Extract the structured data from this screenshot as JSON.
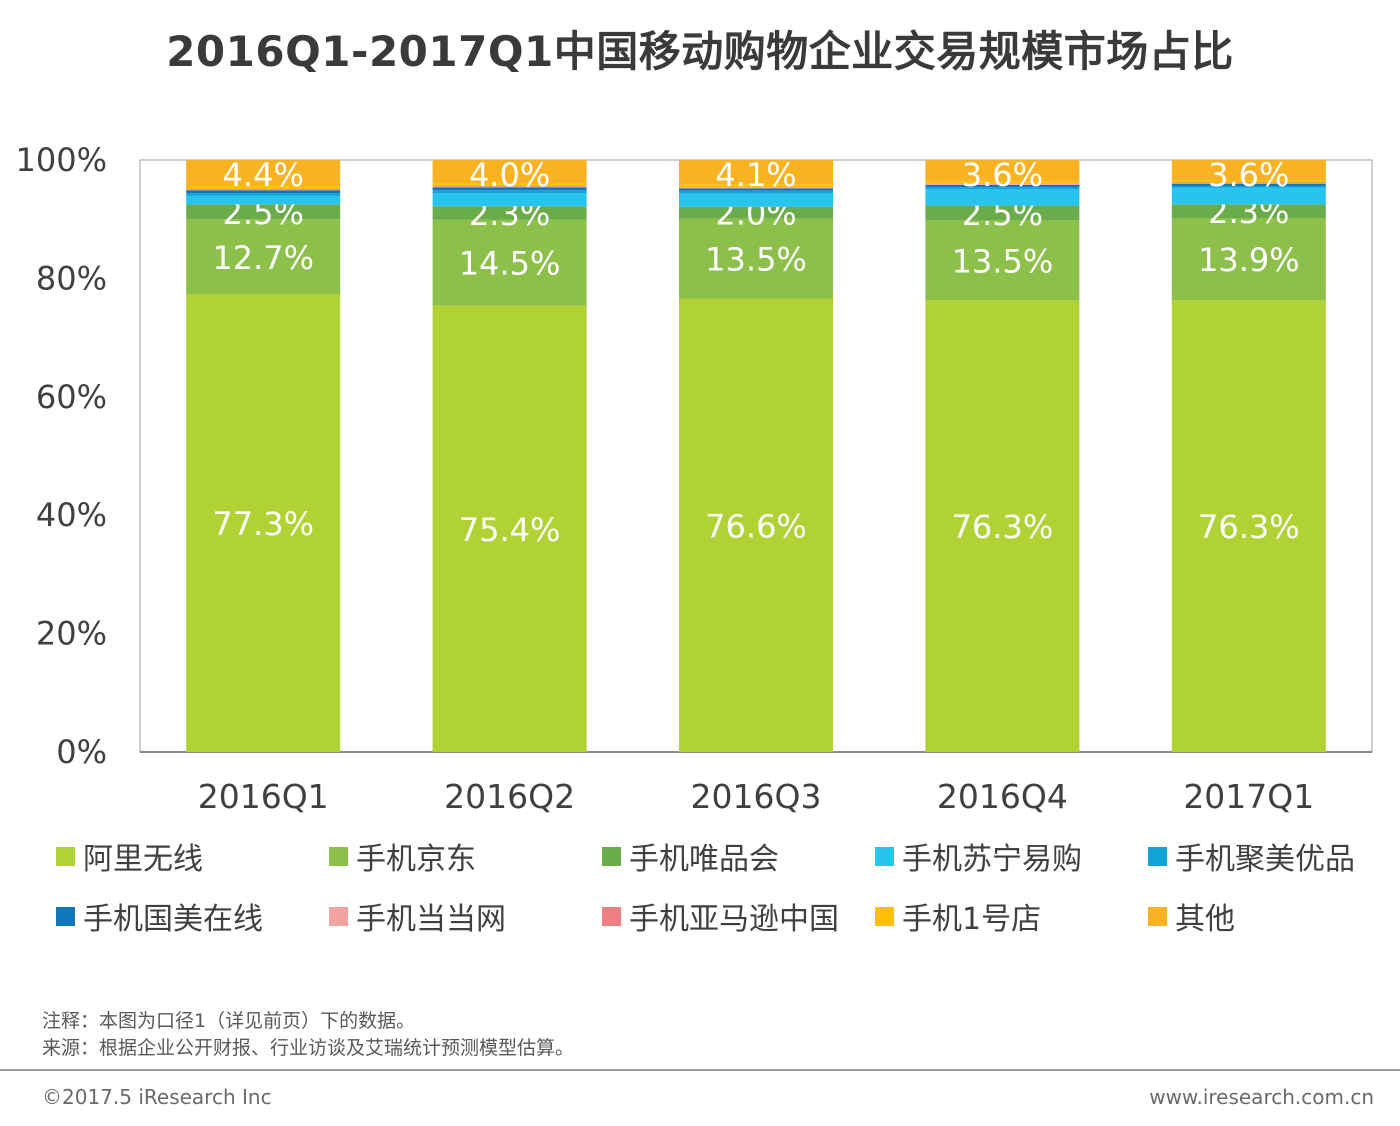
{
  "chart_data": {
    "type": "bar",
    "stacked": true,
    "title": "2016Q1-2017Q1中国移动购物企业交易规模市场占比",
    "categories": [
      "2016Q1",
      "2016Q2",
      "2016Q3",
      "2016Q4",
      "2017Q1"
    ],
    "ylim": [
      0,
      100
    ],
    "yticks": [
      "0%",
      "20%",
      "40%",
      "60%",
      "80%",
      "100%"
    ],
    "series": [
      {
        "name": "阿里无线",
        "color": "#b1d235",
        "values": [
          77.3,
          75.4,
          76.6,
          76.3,
          76.3
        ],
        "labels": [
          "77.3%",
          "75.4%",
          "76.6%",
          "76.3%",
          "76.3%"
        ]
      },
      {
        "name": "手机京东",
        "color": "#8cc04b",
        "values": [
          12.7,
          14.5,
          13.5,
          13.5,
          13.9
        ],
        "labels": [
          "12.7%",
          "14.5%",
          "13.5%",
          "13.5%",
          "13.9%"
        ]
      },
      {
        "name": "手机唯品会",
        "color": "#6aab4a",
        "values": [
          2.5,
          2.3,
          2.0,
          2.5,
          2.3
        ],
        "labels": [
          "2.5%",
          "2.3%",
          "2.0%",
          "2.5%",
          "2.3%"
        ]
      },
      {
        "name": "手机苏宁易购",
        "color": "#27c4ee",
        "values": [
          1.5,
          2.2,
          2.2,
          2.8,
          2.8
        ],
        "labels": [
          "",
          "",
          "",
          "",
          ""
        ]
      },
      {
        "name": "手机聚美优品",
        "color": "#0fa3d8",
        "values": [
          0.4,
          0.5,
          0.5,
          0.3,
          0.3
        ],
        "labels": [
          "",
          "",
          "",
          "",
          ""
        ]
      },
      {
        "name": "手机国美在线",
        "color": "#1177bb",
        "values": [
          0.5,
          0.5,
          0.4,
          0.4,
          0.4
        ],
        "labels": [
          "",
          "",
          "",
          "",
          ""
        ]
      },
      {
        "name": "手机当当网",
        "color": "#f2a3a1",
        "values": [
          0.1,
          0.1,
          0.1,
          0.1,
          0.1
        ],
        "labels": [
          "",
          "",
          "",
          "",
          ""
        ]
      },
      {
        "name": "手机亚马逊中国",
        "color": "#ef7f82",
        "values": [
          0.1,
          0.1,
          0.1,
          0.1,
          0.1
        ],
        "labels": [
          "",
          "",
          "",
          "",
          ""
        ]
      },
      {
        "name": "手机1号店",
        "color": "#ffc000",
        "values": [
          0.5,
          0.4,
          0.5,
          0.4,
          0.4
        ],
        "labels": [
          "",
          "",
          "",
          "",
          ""
        ]
      },
      {
        "name": "其他",
        "color": "#f8b222",
        "values": [
          4.4,
          4.0,
          4.1,
          3.6,
          3.6
        ],
        "labels": [
          "4.4%",
          "4.0%",
          "4.1%",
          "3.6%",
          "3.6%"
        ]
      }
    ],
    "legend_position": "bottom",
    "grid": false
  },
  "notes": {
    "note": "注释：本图为口径1（详见前页）下的数据。",
    "source": "来源：根据企业公开财报、行业访谈及艾瑞统计预测模型估算。"
  },
  "footer": {
    "copyright": "©2017.5 iResearch Inc",
    "website": "www.iresearch.com.cn"
  }
}
